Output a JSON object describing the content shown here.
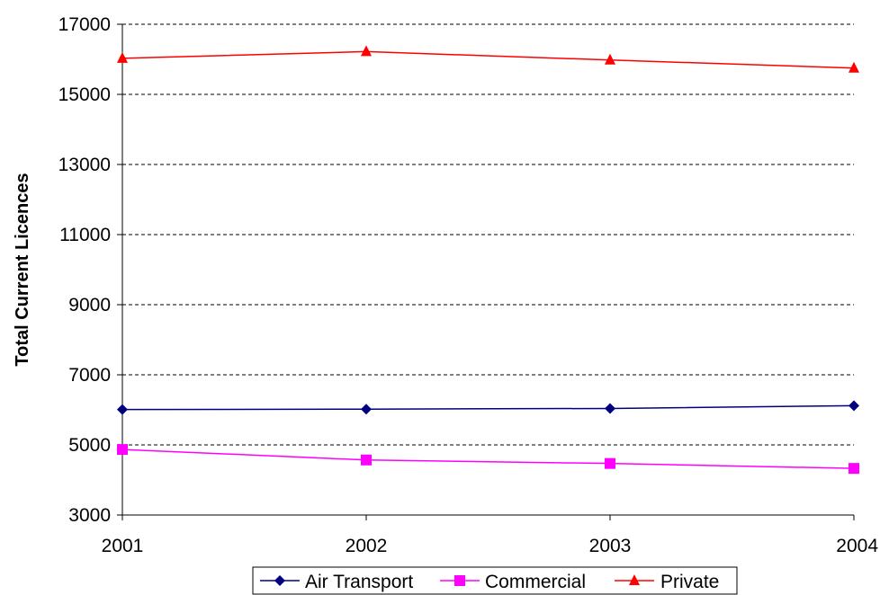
{
  "chart_data": {
    "type": "line",
    "title": "",
    "xlabel": "",
    "ylabel": "Total Current Licences",
    "categories": [
      "2001",
      "2002",
      "2003",
      "2004"
    ],
    "ylim": [
      3000,
      17000
    ],
    "yticks": [
      "3000",
      "5000",
      "7000",
      "9000",
      "11000",
      "13000",
      "15000",
      "17000"
    ],
    "grid": "horizontal dashed",
    "legend_position": "bottom",
    "series": [
      {
        "name": "Air Transport",
        "values": [
          6010,
          6020,
          6040,
          6120
        ],
        "color": "#000080",
        "marker": "diamond"
      },
      {
        "name": "Commercial",
        "values": [
          4870,
          4570,
          4470,
          4330
        ],
        "color": "#ff00ff",
        "marker": "square"
      },
      {
        "name": "Private",
        "values": [
          16030,
          16220,
          15980,
          15750
        ],
        "color": "#ff0000",
        "marker": "triangle"
      }
    ]
  }
}
